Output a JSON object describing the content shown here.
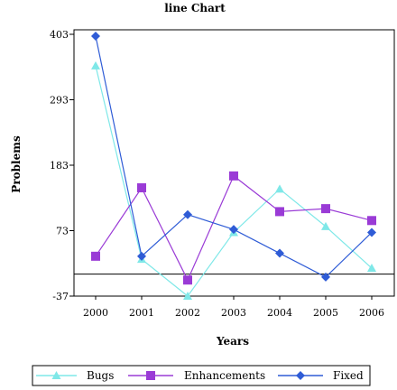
{
  "chart_data": {
    "type": "line",
    "title": "line Chart",
    "xlabel": "Years",
    "ylabel": "Problems",
    "categories": [
      "2000",
      "2001",
      "2002",
      "2003",
      "2004",
      "2005",
      "2006"
    ],
    "y_ticks": [
      -37,
      73,
      183,
      293,
      403
    ],
    "ylim": [
      -37,
      403
    ],
    "baseline": 0,
    "grid": false,
    "legend_position": "bottom",
    "series": [
      {
        "name": "Bugs",
        "color": "#7fe8e8",
        "marker": "triangle",
        "values": [
          350,
          25,
          -37,
          70,
          143,
          80,
          10
        ]
      },
      {
        "name": "Enhancements",
        "color": "#9a3bd6",
        "marker": "square",
        "values": [
          30,
          145,
          -10,
          165,
          105,
          110,
          90
        ]
      },
      {
        "name": "Fixed",
        "color": "#2f5cd6",
        "marker": "diamond",
        "values": [
          400,
          30,
          100,
          75,
          35,
          -5,
          70
        ]
      }
    ]
  }
}
